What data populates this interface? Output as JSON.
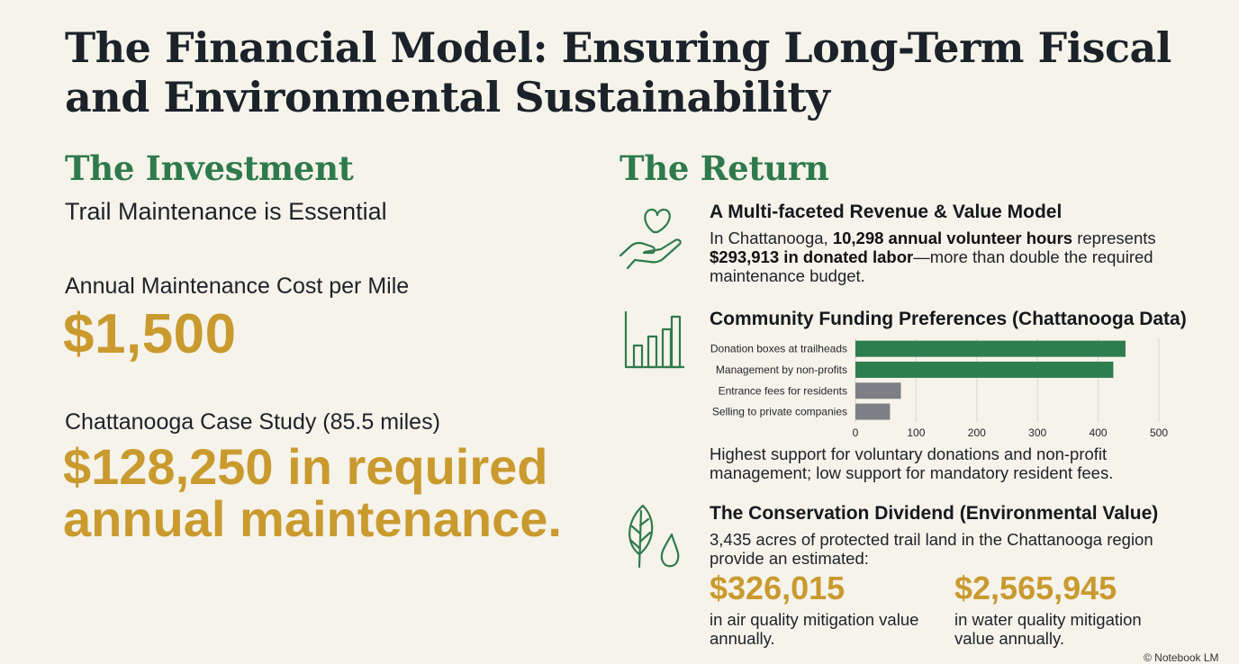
{
  "title": "The Financial Model: Ensuring Long-Term Fiscal and Environmental Sustainability",
  "investment": {
    "heading": "The Investment",
    "subheading": "Trail Maintenance is Essential",
    "cost_label": "Annual Maintenance Cost per Mile",
    "cost_value": "$1,500",
    "case_label": "Chattanooga Case Study (85.5 miles)",
    "case_value": "$128,250 in required annual maintenance."
  },
  "return": {
    "heading": "The Return",
    "revenue": {
      "icon": "hand-heart-icon",
      "title": "A Multi-faceted Revenue & Value Model",
      "text_1": "In Chattanooga, ",
      "text_bold_1": "10,298 annual volunteer hours",
      "text_2": " represents ",
      "text_bold_2": "$293,913 in donated labor",
      "text_3": "—more than double the required maintenance budget."
    },
    "funding": {
      "icon": "bar-chart-icon",
      "title": "Community Funding Preferences (Chattanooga Data)",
      "caption": "Highest support for voluntary donations and non-profit management; low support for mandatory resident fees."
    },
    "conservation": {
      "icon": "leaf-water-drop-icon",
      "title": "The Conservation Dividend (Environmental Value)",
      "text": "3,435 acres of protected trail land in the Chattanooga region provide an estimated:",
      "air_value": "$326,015",
      "air_caption": "in air quality mitigation value annually.",
      "water_value": "$2,565,945",
      "water_caption": "in water quality mitigation value annually."
    }
  },
  "footer_mark": "© Notebook LM",
  "colors": {
    "accent_green": "#2f7a4c",
    "gold": "#c99a2e",
    "bar_green": "#2e7d4f",
    "bar_gray": "#7d7f84",
    "background": "#f6f3eb"
  },
  "chart_data": {
    "type": "bar",
    "orientation": "horizontal",
    "categories": [
      "Donation boxes at trailheads",
      "Management by non-profits",
      "Entrance fees for residents",
      "Selling to private companies"
    ],
    "values": [
      445,
      425,
      75,
      57
    ],
    "bar_colors": [
      "#2e7d4f",
      "#2e7d4f",
      "#7d7f84",
      "#7d7f84"
    ],
    "xlim": [
      0,
      500
    ],
    "xticks": [
      0,
      100,
      200,
      300,
      400,
      500
    ],
    "grid": "vertical",
    "title": "",
    "xlabel": "",
    "ylabel": ""
  }
}
